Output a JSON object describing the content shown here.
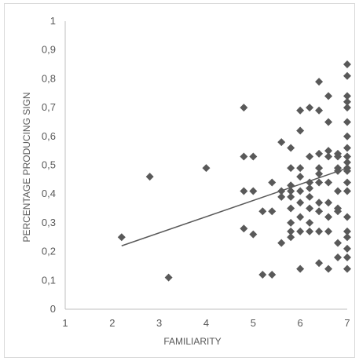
{
  "chart_data": {
    "type": "scatter",
    "title": "",
    "xlabel": "FAMILIARITY",
    "ylabel": "PERCENTAGE PRODUCING SIGN",
    "xlim": [
      1,
      7
    ],
    "ylim": [
      0,
      1
    ],
    "x_ticks": [
      "1",
      "2",
      "3",
      "4",
      "5",
      "6",
      "7"
    ],
    "y_ticks": [
      "0",
      "0,1",
      "0,2",
      "0,3",
      "0,4",
      "0,5",
      "0,6",
      "0,7",
      "0,8",
      "0,9",
      "1"
    ],
    "grid": false,
    "legend": "none",
    "marker": "diamond",
    "marker_color": "#595959",
    "trendline": {
      "type": "linear",
      "x": [
        2.2,
        7.0
      ],
      "y": [
        0.22,
        0.49
      ],
      "color": "#595959"
    },
    "points": [
      [
        2.2,
        0.25
      ],
      [
        2.8,
        0.46
      ],
      [
        3.2,
        0.11
      ],
      [
        4.0,
        0.49
      ],
      [
        4.8,
        0.7
      ],
      [
        4.8,
        0.53
      ],
      [
        4.8,
        0.41
      ],
      [
        4.8,
        0.28
      ],
      [
        5.0,
        0.53
      ],
      [
        5.0,
        0.41
      ],
      [
        5.0,
        0.26
      ],
      [
        5.2,
        0.34
      ],
      [
        5.2,
        0.12
      ],
      [
        5.4,
        0.44
      ],
      [
        5.4,
        0.34
      ],
      [
        5.4,
        0.12
      ],
      [
        5.6,
        0.58
      ],
      [
        5.6,
        0.41
      ],
      [
        5.6,
        0.39
      ],
      [
        5.6,
        0.23
      ],
      [
        5.8,
        0.56
      ],
      [
        5.8,
        0.49
      ],
      [
        5.8,
        0.43
      ],
      [
        5.8,
        0.41
      ],
      [
        5.8,
        0.39
      ],
      [
        5.8,
        0.35
      ],
      [
        5.8,
        0.3
      ],
      [
        5.8,
        0.27
      ],
      [
        5.8,
        0.25
      ],
      [
        6.0,
        0.69
      ],
      [
        6.0,
        0.62
      ],
      [
        6.0,
        0.49
      ],
      [
        6.0,
        0.46
      ],
      [
        6.0,
        0.41
      ],
      [
        6.0,
        0.37
      ],
      [
        6.0,
        0.32
      ],
      [
        6.0,
        0.27
      ],
      [
        6.0,
        0.14
      ],
      [
        6.2,
        0.7
      ],
      [
        6.2,
        0.53
      ],
      [
        6.2,
        0.44
      ],
      [
        6.2,
        0.42
      ],
      [
        6.2,
        0.39
      ],
      [
        6.2,
        0.35
      ],
      [
        6.2,
        0.3
      ],
      [
        6.2,
        0.27
      ],
      [
        6.4,
        0.79
      ],
      [
        6.4,
        0.69
      ],
      [
        6.4,
        0.54
      ],
      [
        6.4,
        0.49
      ],
      [
        6.4,
        0.47
      ],
      [
        6.4,
        0.44
      ],
      [
        6.4,
        0.37
      ],
      [
        6.4,
        0.34
      ],
      [
        6.4,
        0.27
      ],
      [
        6.4,
        0.16
      ],
      [
        6.6,
        0.74
      ],
      [
        6.6,
        0.65
      ],
      [
        6.6,
        0.55
      ],
      [
        6.6,
        0.53
      ],
      [
        6.6,
        0.44
      ],
      [
        6.6,
        0.37
      ],
      [
        6.6,
        0.32
      ],
      [
        6.6,
        0.27
      ],
      [
        6.6,
        0.14
      ],
      [
        6.8,
        0.54
      ],
      [
        6.8,
        0.53
      ],
      [
        6.8,
        0.49
      ],
      [
        6.8,
        0.48
      ],
      [
        6.8,
        0.41
      ],
      [
        6.8,
        0.35
      ],
      [
        6.8,
        0.34
      ],
      [
        6.8,
        0.23
      ],
      [
        6.8,
        0.18
      ],
      [
        7.0,
        0.85
      ],
      [
        7.0,
        0.81
      ],
      [
        7.0,
        0.74
      ],
      [
        7.0,
        0.72
      ],
      [
        7.0,
        0.7
      ],
      [
        7.0,
        0.65
      ],
      [
        7.0,
        0.6
      ],
      [
        7.0,
        0.56
      ],
      [
        7.0,
        0.53
      ],
      [
        7.0,
        0.51
      ],
      [
        7.0,
        0.49
      ],
      [
        7.0,
        0.48
      ],
      [
        7.0,
        0.44
      ],
      [
        7.0,
        0.41
      ],
      [
        7.0,
        0.32
      ],
      [
        7.0,
        0.27
      ],
      [
        7.0,
        0.25
      ],
      [
        7.0,
        0.21
      ],
      [
        7.0,
        0.18
      ],
      [
        7.0,
        0.14
      ]
    ]
  }
}
